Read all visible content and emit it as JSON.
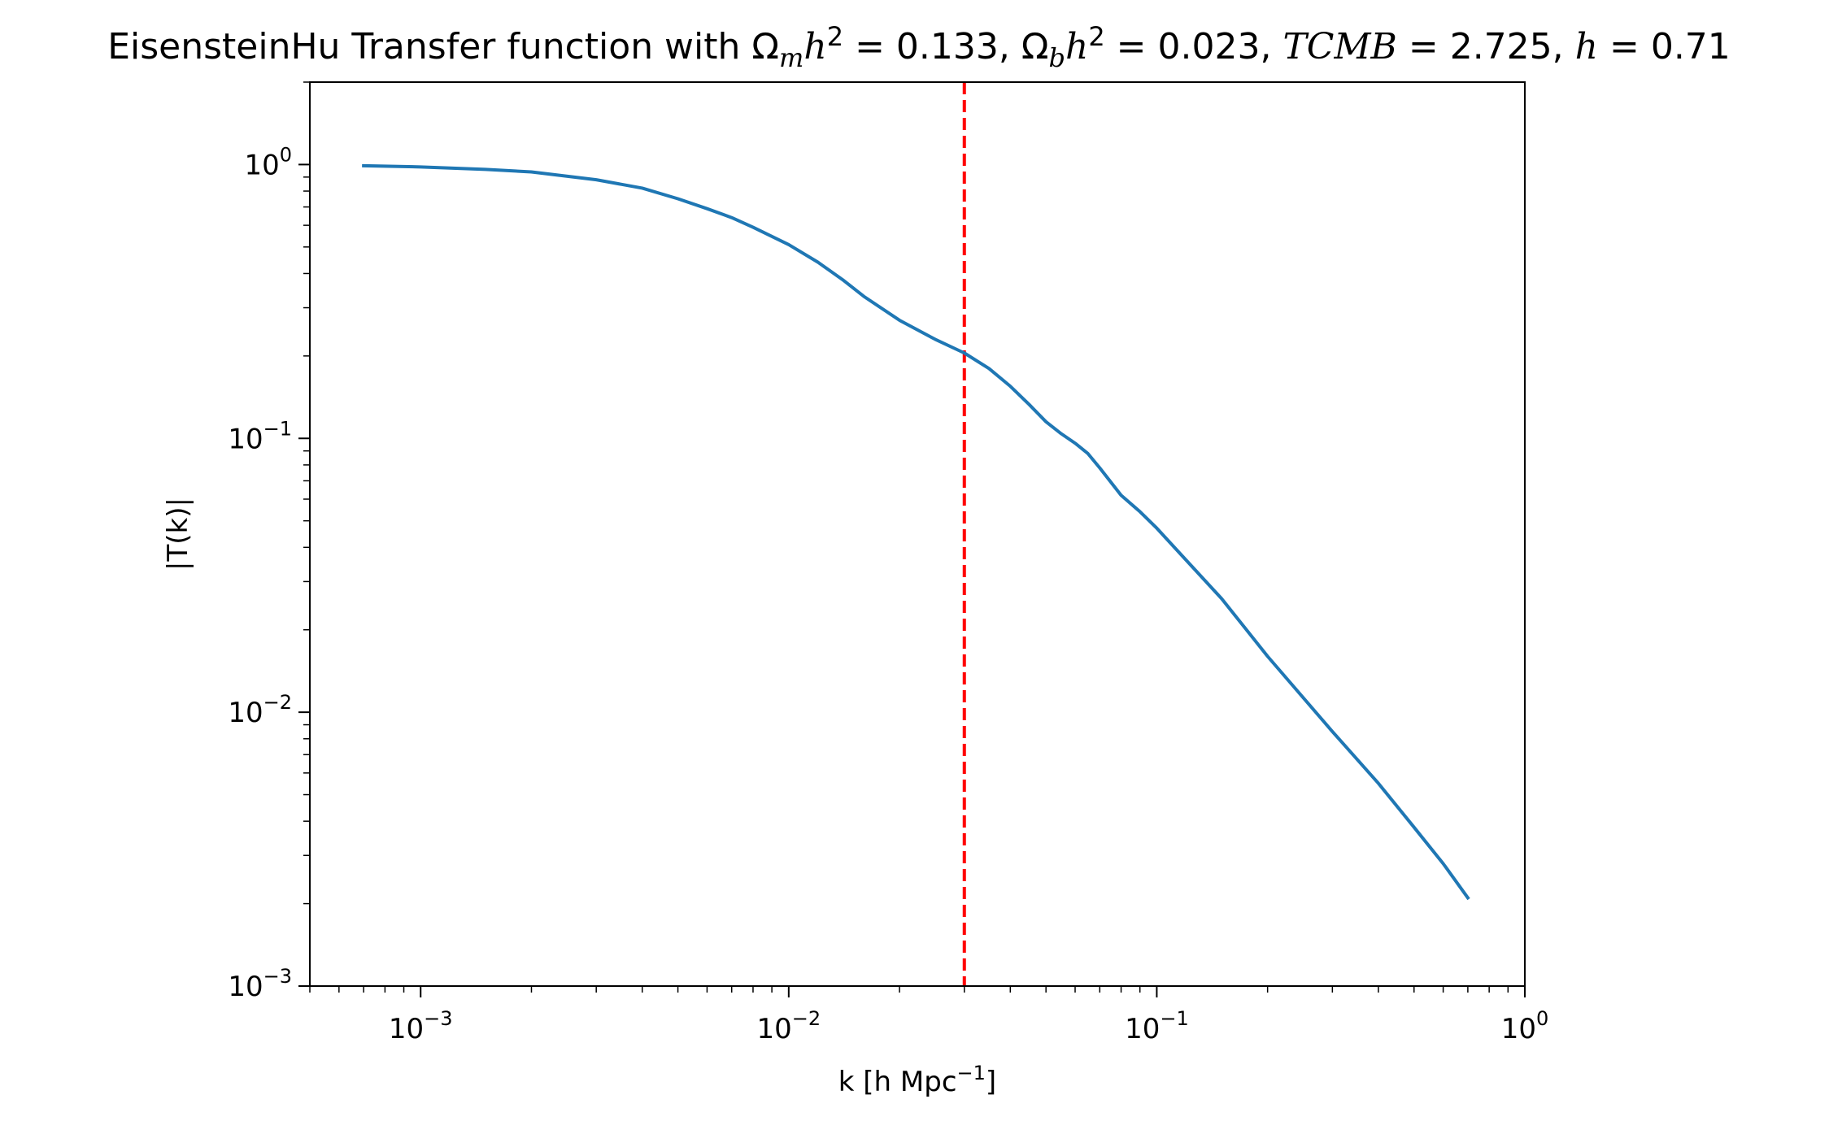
{
  "chart_data": {
    "type": "line",
    "title": {
      "prefix": "EisensteinHu Transfer function with ",
      "parts": [
        {
          "sym": "Ω",
          "sub": "m",
          "var": "h",
          "sup": "2",
          "eq": " = 0.133, "
        },
        {
          "sym": "Ω",
          "sub": "b",
          "var": "h",
          "sup": "2",
          "eq": " = 0.023, "
        },
        {
          "plain": "TCMB",
          "eq": " = 2.725, "
        },
        {
          "plain": "h",
          "eq": " = 0.71"
        }
      ]
    },
    "xlabel": {
      "text": "k [h Mpc",
      "sup": "−1",
      "suffix": "]"
    },
    "ylabel": "|T(k)|",
    "xscale": "log",
    "yscale": "log",
    "xlim": [
      0.0005,
      1.0
    ],
    "ylim": [
      0.001,
      2.0
    ],
    "xticks": [
      {
        "value": 0.001,
        "base": "10",
        "exp": "−3"
      },
      {
        "value": 0.01,
        "base": "10",
        "exp": "−2"
      },
      {
        "value": 0.1,
        "base": "10",
        "exp": "−1"
      },
      {
        "value": 1.0,
        "base": "10",
        "exp": "0"
      }
    ],
    "yticks": [
      {
        "value": 0.001,
        "base": "10",
        "exp": "−3"
      },
      {
        "value": 0.01,
        "base": "10",
        "exp": "−2"
      },
      {
        "value": 0.1,
        "base": "10",
        "exp": "−1"
      },
      {
        "value": 1.0,
        "base": "10",
        "exp": "0"
      }
    ],
    "grid": false,
    "series": [
      {
        "color": "#1f77b4",
        "x": [
          0.0007,
          0.001,
          0.0015,
          0.002,
          0.003,
          0.004,
          0.005,
          0.006,
          0.007,
          0.008,
          0.01,
          0.012,
          0.014,
          0.016,
          0.02,
          0.025,
          0.03,
          0.035,
          0.04,
          0.045,
          0.05,
          0.055,
          0.06,
          0.065,
          0.07,
          0.08,
          0.09,
          0.1,
          0.12,
          0.15,
          0.2,
          0.3,
          0.4,
          0.5,
          0.6,
          0.7
        ],
        "y": [
          0.99,
          0.98,
          0.96,
          0.94,
          0.88,
          0.82,
          0.75,
          0.69,
          0.64,
          0.59,
          0.51,
          0.44,
          0.38,
          0.33,
          0.27,
          0.23,
          0.205,
          0.18,
          0.155,
          0.133,
          0.115,
          0.104,
          0.096,
          0.088,
          0.078,
          0.062,
          0.054,
          0.047,
          0.036,
          0.026,
          0.016,
          0.0085,
          0.0055,
          0.0038,
          0.0028,
          0.0021
        ]
      }
    ],
    "vline": {
      "x": 0.03,
      "color": "#ff0000",
      "style": "dashed"
    },
    "colors": {
      "line": "#1f77b4",
      "vline": "#ff0000",
      "axes": "#000000"
    }
  }
}
